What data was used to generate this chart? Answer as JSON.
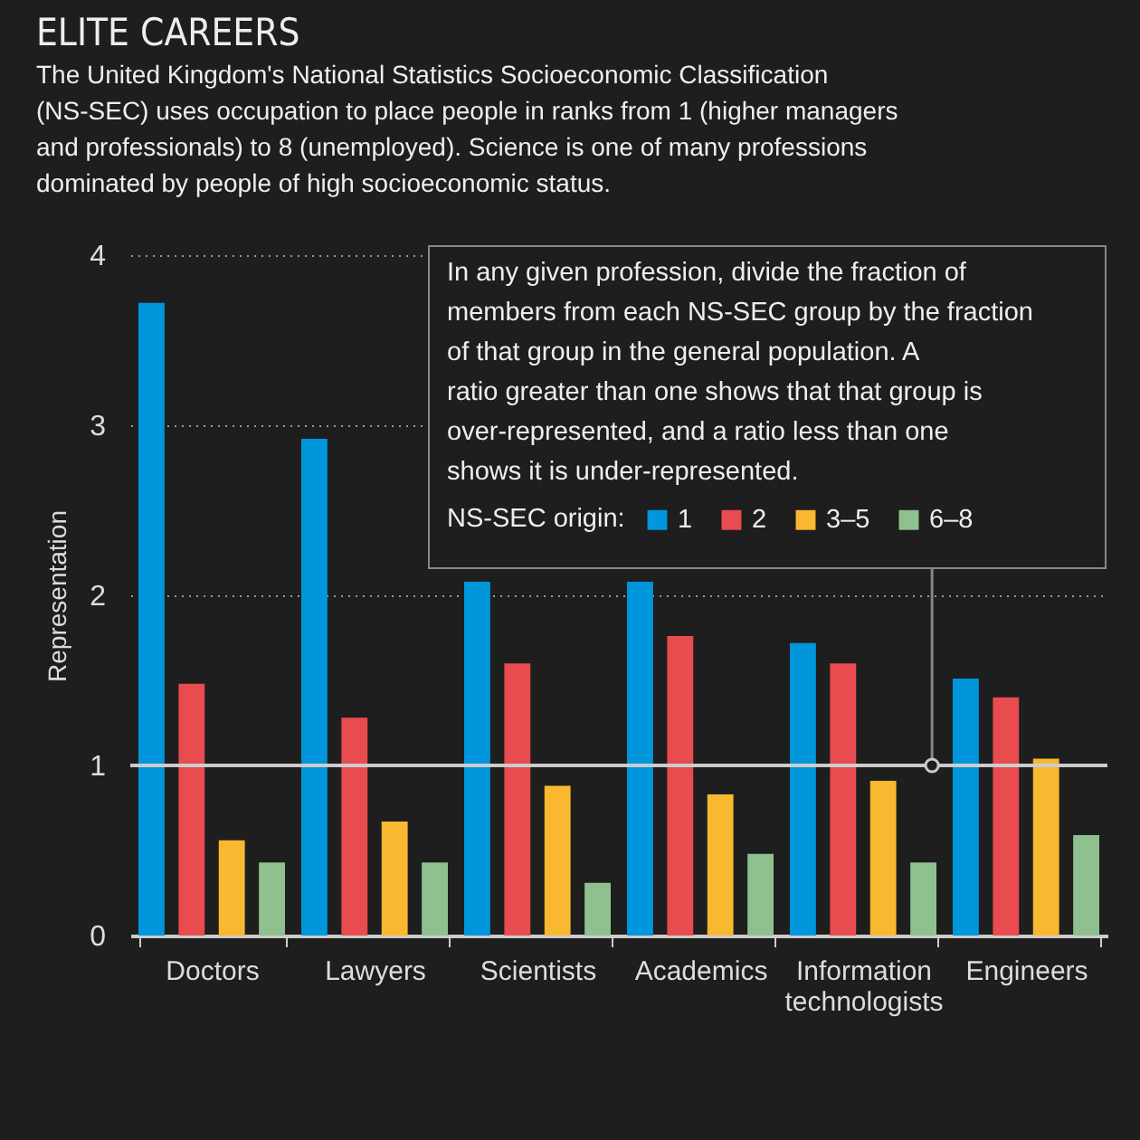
{
  "chart_data": {
    "type": "bar",
    "title": "ELITE CAREERS",
    "subtitle": "The United Kingdom's National Statistics Socioeconomic Classification (NS-SEC) uses occupation to place people in ranks from 1 (higher managers and professionals) to 8 (unemployed). Science is one of many professions dominated by people of high socioeconomic status.",
    "ylabel": "Representation",
    "legend_title": "NS-SEC origin:",
    "annotations": [
      "In any given profession, divide the fraction of members from each NS-SEC group by the fraction of that group in the general population. A ratio greater than one shows that that group is over-represented, and a ratio less than one shows it is under-represented."
    ],
    "categories": [
      "Doctors",
      "Lawyers",
      "Scientists",
      "Academics",
      "Information technologists",
      "Engineers"
    ],
    "series": [
      {
        "name": "1",
        "color": "#0096dc",
        "values": [
          3.72,
          2.92,
          2.08,
          2.08,
          1.72,
          1.51
        ]
      },
      {
        "name": "2",
        "color": "#e84c4f",
        "values": [
          1.48,
          1.28,
          1.6,
          1.76,
          1.6,
          1.4
        ]
      },
      {
        "name": "3–5",
        "color": "#f8b82f",
        "values": [
          0.56,
          0.67,
          0.88,
          0.83,
          0.91,
          1.04
        ]
      },
      {
        "name": "6–8",
        "color": "#8ec18f",
        "values": [
          0.43,
          0.43,
          0.31,
          0.48,
          0.43,
          0.59
        ]
      }
    ],
    "ylim": [
      0,
      4
    ],
    "yticks": [
      0,
      1,
      2,
      3,
      4
    ],
    "grid": "y",
    "legend": "top right",
    "ref_lines": [
      {
        "axis": "y",
        "value": 1
      }
    ]
  }
}
